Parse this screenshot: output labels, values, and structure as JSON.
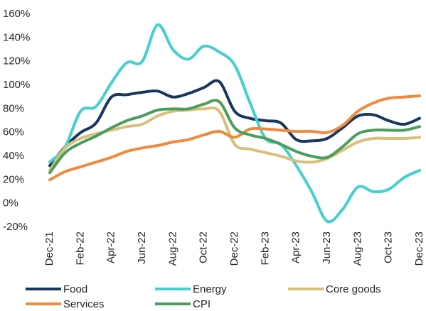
{
  "chart_data": {
    "type": "line",
    "categories": [
      "Dec-21",
      null,
      "Feb-22",
      null,
      "Apr-22",
      null,
      "Jun-22",
      null,
      "Aug-22",
      null,
      "Oct-22",
      null,
      "Dec-22",
      null,
      "Feb-23",
      null,
      "Apr-23",
      null,
      "Jun-23",
      null,
      "Aug-23",
      null,
      "Oct-23",
      null,
      "Dec-23"
    ],
    "series": [
      {
        "name": "Food",
        "color": "#17375e",
        "values": [
          32,
          48,
          60,
          68,
          90,
          92,
          94,
          95,
          90,
          93,
          98,
          103,
          78,
          72,
          70,
          68,
          54,
          53,
          55,
          64,
          74,
          75,
          70,
          67,
          72
        ]
      },
      {
        "name": "Energy",
        "color": "#45d0cf",
        "values": [
          35,
          48,
          78,
          82,
          102,
          119,
          120,
          151,
          130,
          122,
          133,
          128,
          117,
          85,
          55,
          50,
          32,
          10,
          -15,
          -5,
          14,
          10,
          12,
          22,
          28
        ]
      },
      {
        "name": "Core goods",
        "color": "#d9bf7a",
        "values": [
          28,
          47,
          55,
          59,
          62,
          65,
          67,
          74,
          78,
          79,
          80,
          78,
          50,
          46,
          43,
          40,
          36,
          35,
          38,
          45,
          52,
          55,
          55,
          55,
          56
        ]
      },
      {
        "name": "Services",
        "color": "#f08a3c",
        "values": [
          20,
          27,
          31,
          35,
          39,
          44,
          47,
          49,
          52,
          54,
          58,
          61,
          56,
          63,
          63,
          62,
          61,
          61,
          60,
          66,
          78,
          85,
          89,
          90,
          91
        ]
      },
      {
        "name": "CPI",
        "color": "#4a9e5c",
        "values": [
          26,
          43,
          51,
          57,
          64,
          70,
          74,
          79,
          80,
          80,
          84,
          86,
          64,
          58,
          55,
          50,
          44,
          40,
          39,
          48,
          59,
          62,
          62,
          62,
          65
        ]
      }
    ],
    "ylim": [
      -20,
      160
    ],
    "yticks": [
      {
        "value": -20,
        "label": "-20%"
      },
      {
        "value": 0,
        "label": "0%"
      },
      {
        "value": 20,
        "label": "20%"
      },
      {
        "value": 40,
        "label": "40%"
      },
      {
        "value": 60,
        "label": "60%"
      },
      {
        "value": 80,
        "label": "80%"
      },
      {
        "value": 100,
        "label": "100%"
      },
      {
        "value": 120,
        "label": "120%"
      },
      {
        "value": 140,
        "label": "140%"
      },
      {
        "value": 160,
        "label": "160%"
      }
    ],
    "grid": false
  }
}
